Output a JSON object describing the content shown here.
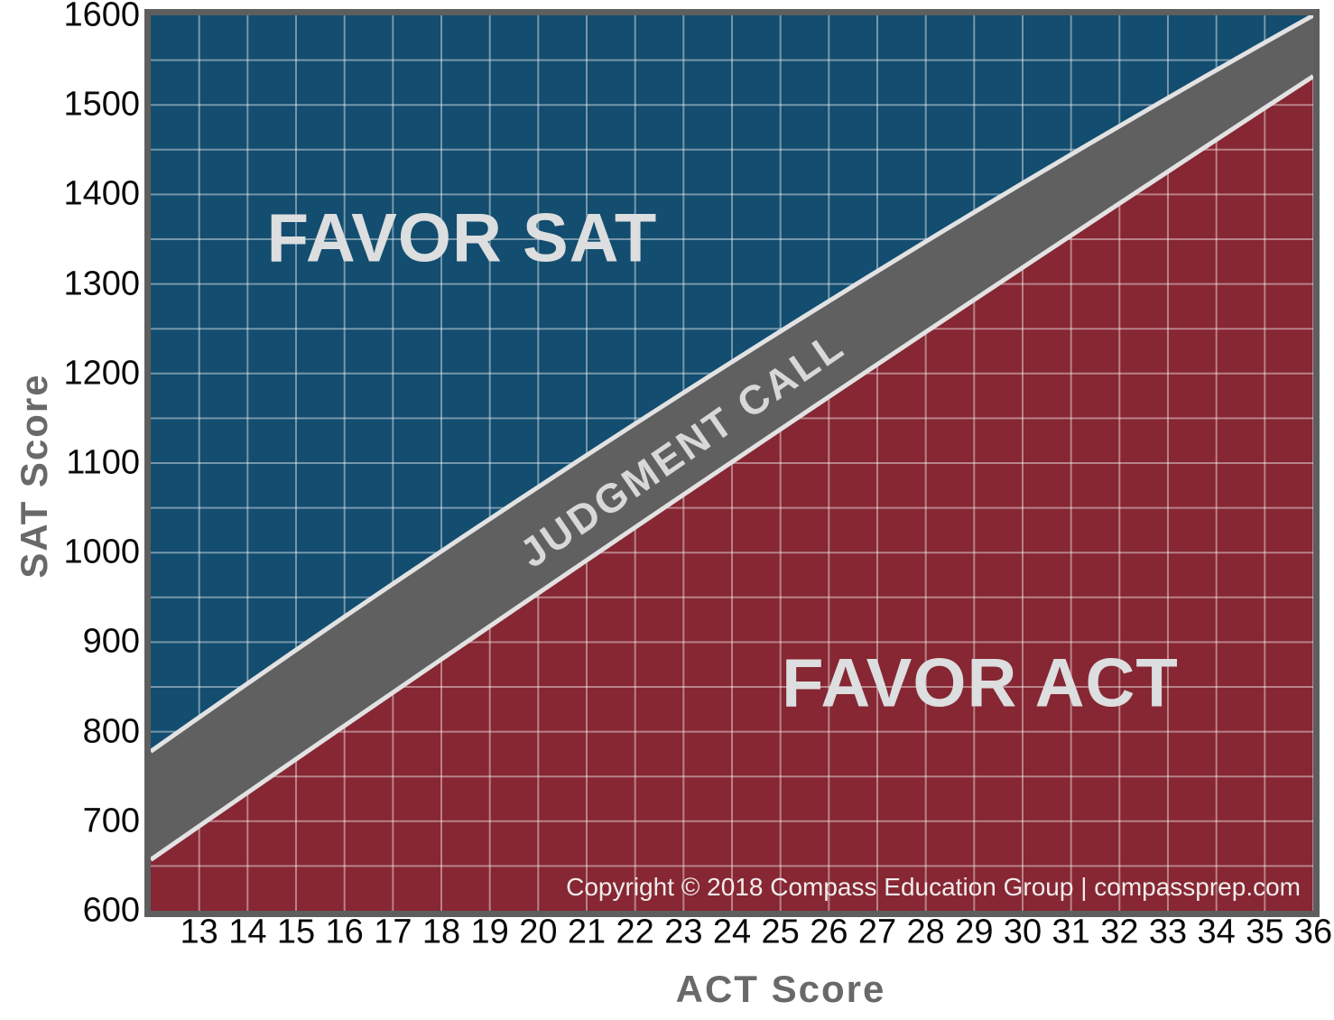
{
  "chart_data": {
    "type": "area",
    "xlabel": "ACT Score",
    "ylabel": "SAT Score",
    "xlim": [
      12,
      36
    ],
    "ylim": [
      600,
      1600
    ],
    "x_ticks": [
      13,
      14,
      15,
      16,
      17,
      18,
      19,
      20,
      21,
      22,
      23,
      24,
      25,
      26,
      27,
      28,
      29,
      30,
      31,
      32,
      33,
      34,
      35,
      36
    ],
    "y_ticks": [
      1600,
      1500,
      1400,
      1300,
      1200,
      1100,
      1000,
      900,
      800,
      700,
      600
    ],
    "grid": {
      "x_step_act": 1,
      "y_step_sat": 50,
      "color": "rgba(255,255,255,0.42)",
      "width": 2
    },
    "regions": [
      {
        "id": "favor-sat",
        "label": "FAVOR SAT",
        "fill": "#134D6F"
      },
      {
        "id": "judgment-call",
        "label": "JUDGMENT CALL",
        "fill": "#606060"
      },
      {
        "id": "favor-act",
        "label": "FAVOR ACT",
        "fill": "#862733"
      }
    ],
    "band": {
      "upper_sat": {
        "start": 778,
        "control": 1237,
        "end": 1600
      },
      "lower_sat": {
        "start": 657,
        "control": 1108,
        "end": 1532
      },
      "edge_color": "#E2E2E2",
      "edge_width": 5
    },
    "frame_color": "#5E5E5E",
    "footer": "Copyright © 2018 Compass Education Group | compassprep.com",
    "text_colors": {
      "region_label": "#DCDEDF",
      "band_label": "#D8D8D8",
      "tick": "#0A0A0A",
      "axis_title": "#696969",
      "footer": "#F1ECEC"
    }
  }
}
